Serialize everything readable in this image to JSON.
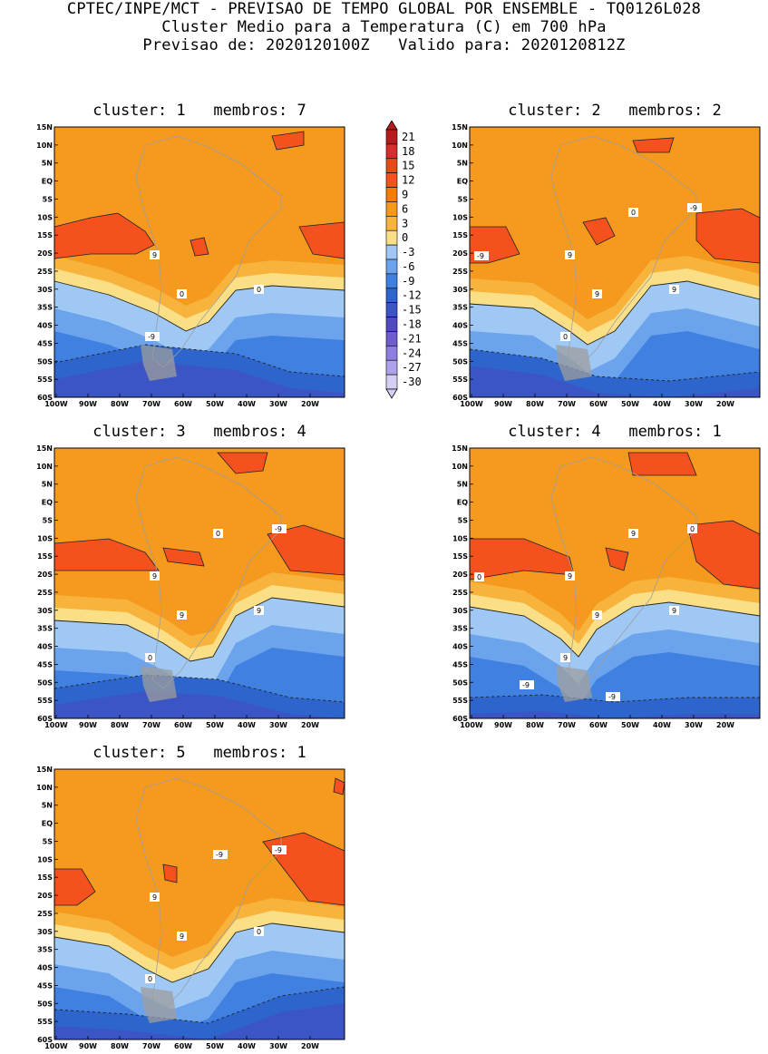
{
  "header": {
    "line1": "CPTEC/INPE/MCT - PREVISAO DE TEMPO GLOBAL POR ENSEMBLE - TQ0126L028",
    "line2": "Cluster Medio para a Temperatura (C) em 700 hPa",
    "line3": "Previsao de: 2020120100Z   Valido para: 2020120812Z"
  },
  "axes": {
    "x_ticks": [
      "100W",
      "90W",
      "80W",
      "70W",
      "60W",
      "50W",
      "40W",
      "30W",
      "20W"
    ],
    "y_ticks": [
      "15N",
      "10N",
      "5N",
      "EQ",
      "5S",
      "10S",
      "15S",
      "20S",
      "25S",
      "30S",
      "35S",
      "40S",
      "45S",
      "50S",
      "55S",
      "60S"
    ]
  },
  "colorbar": {
    "levels": [
      "21",
      "18",
      "15",
      "12",
      "9",
      "6",
      "3",
      "0",
      "-3",
      "-6",
      "-9",
      "-12",
      "-15",
      "-18",
      "-21",
      "-24",
      "-27",
      "-30"
    ],
    "colors": [
      "#b71c1c",
      "#d32f2f",
      "#e64a19",
      "#f4511e",
      "#f57c00",
      "#f59a1f",
      "#f7b33b",
      "#fbdf86",
      "#9fc8f5",
      "#6ba4ec",
      "#3f80e0",
      "#2e65cc",
      "#3b55c4",
      "#5049c0",
      "#6f5dd0",
      "#8f7ee0",
      "#b0a2ea",
      "#d6cef4"
    ]
  },
  "panels": [
    {
      "title": "cluster: 1   membros: 7",
      "labels": [
        "9",
        "0",
        "0",
        "-9"
      ]
    },
    {
      "title": "cluster: 2   membros: 2",
      "labels": [
        "9",
        "9",
        "9",
        "0",
        "0",
        "-9",
        "-9"
      ]
    },
    {
      "title": "cluster: 3   membros: 4",
      "labels": [
        "9",
        "9",
        "9",
        "0",
        "0",
        "-9"
      ]
    },
    {
      "title": "cluster: 4   membros: 1",
      "labels": [
        "9",
        "9",
        "9",
        "9",
        "9",
        "0",
        "0",
        "-9",
        "-9"
      ]
    },
    {
      "title": "cluster: 5   membros: 1",
      "labels": [
        "9",
        "9",
        "0",
        "0",
        "-9",
        "-9"
      ]
    }
  ]
}
